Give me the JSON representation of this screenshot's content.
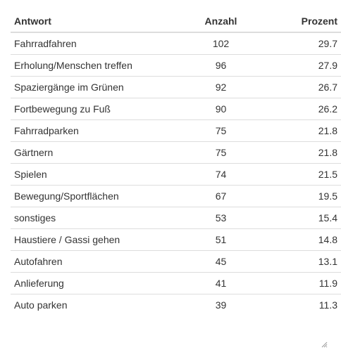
{
  "table": {
    "headers": {
      "answer": "Antwort",
      "count": "Anzahl",
      "percent": "Prozent"
    },
    "rows": [
      {
        "answer": "Fahrradfahren",
        "count": "102",
        "percent": "29.7"
      },
      {
        "answer": "Erholung/Menschen treffen",
        "count": "96",
        "percent": "27.9"
      },
      {
        "answer": "Spaziergänge im Grünen",
        "count": "92",
        "percent": "26.7"
      },
      {
        "answer": "Fortbewegung zu Fuß",
        "count": "90",
        "percent": "26.2"
      },
      {
        "answer": "Fahrradparken",
        "count": "75",
        "percent": "21.8"
      },
      {
        "answer": "Gärtnern",
        "count": "75",
        "percent": "21.8"
      },
      {
        "answer": "Spielen",
        "count": "74",
        "percent": "21.5"
      },
      {
        "answer": "Bewegung/Sportflächen",
        "count": "67",
        "percent": "19.5"
      },
      {
        "answer": "sonstiges",
        "count": "53",
        "percent": "15.4"
      },
      {
        "answer": "Haustiere / Gassi gehen",
        "count": "51",
        "percent": "14.8"
      },
      {
        "answer": "Autofahren",
        "count": "45",
        "percent": "13.1"
      },
      {
        "answer": "Anlieferung",
        "count": "41",
        "percent": "11.9"
      },
      {
        "answer": "Auto parken",
        "count": "39",
        "percent": "11.3"
      }
    ]
  },
  "icons": {
    "resize_grip": "resize-grip-icon"
  }
}
